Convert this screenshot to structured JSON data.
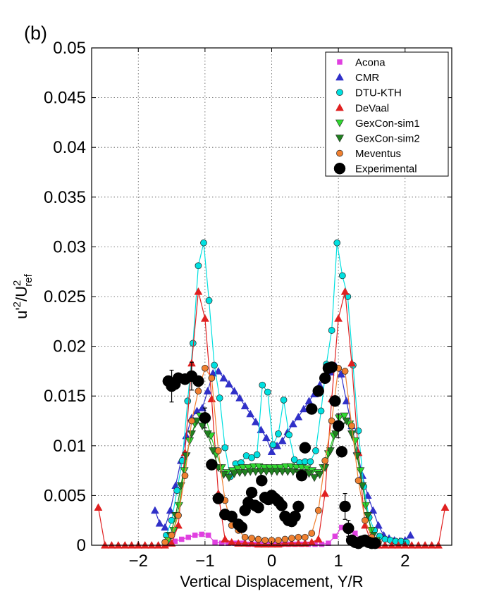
{
  "panel_label": "(b)",
  "chart_data": {
    "type": "scatter",
    "xlabel": "Vertical Displacement, Y/R",
    "ylabel": {
      "base": "u'",
      "sup1": "2",
      "sep": "/U",
      "sup2": "2",
      "sub": "ref"
    },
    "xlim": [
      -2.7,
      2.7
    ],
    "ylim": [
      0,
      0.05
    ],
    "x_ticks": [
      -2,
      -1,
      0,
      1,
      2
    ],
    "x_tick_labels": [
      "−2",
      "−1",
      "0",
      "1",
      "2"
    ],
    "y_ticks": [
      0,
      0.005,
      0.01,
      0.015,
      0.02,
      0.025,
      0.03,
      0.035,
      0.04,
      0.045,
      0.05
    ],
    "y_tick_labels": [
      "0",
      "0.005",
      "0.01",
      "0.015",
      "0.02",
      "0.025",
      "0.03",
      "0.035",
      "0.04",
      "0.045",
      "0.05"
    ],
    "grid": true,
    "legend_position": "top-right",
    "series": [
      {
        "name": "Acona",
        "marker": "square",
        "color": "#e040e0",
        "line": true,
        "x": [
          -1.55,
          -1.45,
          -1.35,
          -1.25,
          -1.15,
          -1.05,
          -0.95,
          -0.85,
          -0.75,
          -0.65,
          -0.55,
          -0.45,
          -0.35,
          -0.25,
          -0.15,
          -0.05,
          0.05,
          0.15,
          0.25,
          0.35,
          0.45,
          0.55,
          0.65,
          0.75,
          0.85,
          0.95,
          1.05,
          1.15,
          1.25,
          1.35,
          1.45,
          1.55
        ],
        "y": [
          0.0002,
          0.0004,
          0.0006,
          0.0008,
          0.001,
          0.0011,
          0.001,
          0.0003,
          0.0002,
          0.0002,
          0.0002,
          0.0002,
          0.0001,
          0.0001,
          0.0001,
          0.0001,
          0.0001,
          0.0001,
          0.0001,
          0.0001,
          0.0001,
          0.0001,
          0.0001,
          0.0001,
          0.0002,
          0.0009,
          0.0018,
          0.0018,
          0.0012,
          0.0005,
          0.0002,
          0.0001
        ]
      },
      {
        "name": "CMR",
        "marker": "triangle-up",
        "color": "#3030c8",
        "line": true,
        "x": [
          -1.75,
          -1.68,
          -1.6,
          -1.52,
          -1.44,
          -1.36,
          -1.28,
          -1.2,
          -1.12,
          -1.04,
          -0.96,
          -0.88,
          -0.8,
          -0.72,
          -0.64,
          -0.56,
          -0.48,
          -0.4,
          -0.32,
          -0.24,
          -0.16,
          -0.08,
          0,
          0.08,
          0.16,
          0.24,
          0.32,
          0.4,
          0.48,
          0.56,
          0.64,
          0.72,
          0.8,
          0.88,
          0.96,
          1.04,
          1.12,
          1.2,
          1.28,
          1.36,
          1.44,
          1.52,
          1.6,
          1.68,
          1.76,
          1.84,
          1.92,
          2,
          2.08
        ],
        "y": [
          0.0035,
          0.0022,
          0.0018,
          0.0035,
          0.006,
          0.0085,
          0.011,
          0.0128,
          0.0135,
          0.0138,
          0.0155,
          0.0173,
          0.0175,
          0.0168,
          0.0162,
          0.0155,
          0.0148,
          0.014,
          0.0132,
          0.0124,
          0.0116,
          0.0108,
          0.0094,
          0.01,
          0.0105,
          0.0114,
          0.0122,
          0.0129,
          0.0137,
          0.0145,
          0.0152,
          0.0161,
          0.0168,
          0.0174,
          0.018,
          0.0172,
          0.0145,
          0.012,
          0.0095,
          0.007,
          0.005,
          0.0035,
          0.002,
          0.001,
          0.0007,
          0.0005,
          0.0004,
          0.0005,
          0.001
        ]
      },
      {
        "name": "DTU-KTH",
        "marker": "circle",
        "color": "#00e0e0",
        "line": true,
        "x": [
          -1.58,
          -1.5,
          -1.42,
          -1.34,
          -1.26,
          -1.18,
          -1.1,
          -1.02,
          -0.94,
          -0.86,
          -0.78,
          -0.7,
          -0.62,
          -0.54,
          -0.46,
          -0.38,
          -0.3,
          -0.22,
          -0.14,
          -0.06,
          0.02,
          0.1,
          0.18,
          0.26,
          0.34,
          0.42,
          0.5,
          0.58,
          0.66,
          0.74,
          0.82,
          0.9,
          0.98,
          1.06,
          1.14,
          1.22,
          1.3,
          1.38,
          1.46,
          1.54,
          1.62,
          1.7,
          1.78,
          1.86,
          1.94,
          2.02
        ],
        "y": [
          0.001,
          0.0025,
          0.0055,
          0.0085,
          0.0145,
          0.0203,
          0.0281,
          0.0304,
          0.0246,
          0.0181,
          0.0148,
          0.0098,
          0.0069,
          0.0082,
          0.0083,
          0.009,
          0.0088,
          0.0091,
          0.0161,
          0.0154,
          0.0101,
          0.0112,
          0.0146,
          0.0111,
          0.0086,
          0.0083,
          0.0084,
          0.0084,
          0.0095,
          0.0135,
          0.0182,
          0.0216,
          0.0304,
          0.0271,
          0.025,
          0.0181,
          0.0115,
          0.0059,
          0.0028,
          0.0015,
          0.0009,
          0.0006,
          0.0005,
          0.0004,
          0.0004,
          0.0003
        ]
      },
      {
        "name": "DeVaal",
        "marker": "triangle-up",
        "color": "#e02020",
        "line": true,
        "x": [
          -2.6,
          -2.5,
          -2.4,
          -2.3,
          -2.2,
          -2.1,
          -2,
          -1.9,
          -1.8,
          -1.7,
          -1.6,
          -1.5,
          -1.4,
          -1.3,
          -1.2,
          -1.1,
          -1,
          -0.9,
          -0.8,
          -0.7,
          -0.6,
          -0.5,
          -0.4,
          -0.3,
          -0.2,
          -0.1,
          0,
          0.1,
          0.2,
          0.3,
          0.4,
          0.5,
          0.6,
          0.7,
          0.8,
          0.9,
          1,
          1.1,
          1.2,
          1.3,
          1.4,
          1.5,
          1.6,
          1.7,
          1.8,
          1.9,
          2,
          2.1,
          2.2,
          2.3,
          2.4,
          2.5,
          2.6
        ],
        "y": [
          0.0038,
          0,
          0,
          0,
          0,
          0,
          0,
          0,
          0,
          0,
          0,
          0.0002,
          0.002,
          0.0093,
          0.0183,
          0.0255,
          0.0228,
          0.0147,
          0.0052,
          0.0006,
          0.0003,
          0.0002,
          0.0002,
          0.0002,
          0.0001,
          0.0001,
          0.0001,
          0.0001,
          0.0002,
          0.0002,
          0.0002,
          0.0002,
          0.0003,
          0.0006,
          0.0052,
          0.0147,
          0.0228,
          0.0255,
          0.0183,
          0.0093,
          0.002,
          0.0002,
          0,
          0,
          0,
          0,
          0,
          0,
          0,
          0,
          0,
          0,
          0.0038
        ]
      },
      {
        "name": "GexCon-sim1",
        "marker": "triangle-down",
        "color": "#30d830",
        "line": true,
        "x": [
          -1.55,
          -1.47,
          -1.39,
          -1.31,
          -1.23,
          -1.15,
          -1.07,
          -0.99,
          -0.91,
          -0.83,
          -0.75,
          -0.67,
          -0.59,
          -0.51,
          -0.43,
          -0.35,
          -0.27,
          -0.19,
          -0.11,
          -0.03,
          0.05,
          0.13,
          0.21,
          0.29,
          0.37,
          0.45,
          0.53,
          0.61,
          0.69,
          0.77,
          0.85,
          0.93,
          1.01,
          1.09,
          1.17,
          1.25,
          1.33,
          1.41,
          1.49,
          1.57
        ],
        "y": [
          0.0005,
          0.0015,
          0.004,
          0.0075,
          0.0105,
          0.0122,
          0.013,
          0.0128,
          0.011,
          0.0092,
          0.0078,
          0.0073,
          0.0075,
          0.0077,
          0.0078,
          0.0078,
          0.0079,
          0.0079,
          0.0078,
          0.0078,
          0.0078,
          0.0078,
          0.0079,
          0.0079,
          0.0078,
          0.0078,
          0.0077,
          0.0075,
          0.0073,
          0.0078,
          0.0092,
          0.011,
          0.0128,
          0.013,
          0.0122,
          0.0105,
          0.0075,
          0.004,
          0.0015,
          0.0005
        ]
      },
      {
        "name": "GexCon-sim2",
        "marker": "triangle-down",
        "color": "#208020",
        "line": true,
        "x": [
          -1.52,
          -1.44,
          -1.36,
          -1.28,
          -1.2,
          -1.12,
          -1.04,
          -0.96,
          -0.88,
          -0.8,
          -0.72,
          -0.64,
          -0.56,
          -0.48,
          -0.4,
          -0.32,
          -0.24,
          -0.16,
          -0.08,
          0,
          0.08,
          0.16,
          0.24,
          0.32,
          0.4,
          0.48,
          0.56,
          0.64,
          0.72,
          0.8,
          0.88,
          0.96,
          1.04,
          1.12,
          1.2,
          1.28,
          1.36,
          1.44,
          1.52
        ],
        "y": [
          0.001,
          0.003,
          0.006,
          0.009,
          0.0112,
          0.0125,
          0.012,
          0.0112,
          0.0095,
          0.0078,
          0.0071,
          0.0068,
          0.0072,
          0.0073,
          0.0073,
          0.0074,
          0.0074,
          0.0074,
          0.0074,
          0.0074,
          0.0074,
          0.0074,
          0.0074,
          0.0074,
          0.0073,
          0.0073,
          0.0072,
          0.0068,
          0.0071,
          0.0078,
          0.0095,
          0.0112,
          0.012,
          0.0125,
          0.0112,
          0.009,
          0.006,
          0.003,
          0.001
        ]
      },
      {
        "name": "Meventus",
        "marker": "circle",
        "color": "#f08030",
        "line": true,
        "x": [
          -1.6,
          -1.5,
          -1.4,
          -1.3,
          -1.2,
          -1.1,
          -1,
          -0.9,
          -0.8,
          -0.7,
          -0.6,
          -0.5,
          -0.4,
          -0.3,
          -0.2,
          -0.1,
          0,
          0.1,
          0.2,
          0.3,
          0.4,
          0.5,
          0.6,
          0.7,
          0.8,
          0.9,
          1,
          1.1,
          1.2,
          1.3,
          1.4,
          1.5,
          1.6
        ],
        "y": [
          0.0003,
          0.001,
          0.003,
          0.007,
          0.0125,
          0.0155,
          0.0178,
          0.0168,
          0.0095,
          0.0045,
          0.002,
          0.0015,
          0.0008,
          0.0007,
          0.0006,
          0.0005,
          0.0005,
          0.0005,
          0.0006,
          0.0007,
          0.0008,
          0.0008,
          0.0012,
          0.0035,
          0.0085,
          0.0125,
          0.0178,
          0.0175,
          0.012,
          0.0065,
          0.0025,
          0.0008,
          0.0003
        ]
      },
      {
        "name": "Experimental",
        "marker": "circle-large",
        "color": "#000000",
        "line": false,
        "x": [
          -1.55,
          -1.5,
          -1.45,
          -1.4,
          -1.3,
          -1.2,
          -1.1,
          -1,
          -0.9,
          -0.8,
          -0.7,
          -0.6,
          -0.5,
          -0.45,
          -0.4,
          -0.35,
          -0.3,
          -0.25,
          -0.2,
          -0.15,
          -0.1,
          -0.05,
          0,
          0.05,
          0.1,
          0.15,
          0.2,
          0.25,
          0.3,
          0.35,
          0.4,
          0.45,
          0.5,
          0.6,
          0.7,
          0.8,
          0.85,
          0.9,
          0.95,
          1,
          1.05,
          1.1,
          1.15,
          1.2,
          1.25,
          1.3,
          1.35,
          1.4,
          1.45,
          1.5,
          1.55
        ],
        "y": [
          0.0165,
          0.016,
          0.0162,
          0.0168,
          0.0167,
          0.017,
          0.0165,
          0.0128,
          0.0081,
          0.0047,
          0.0031,
          0.0029,
          0.0021,
          0.0018,
          0.0035,
          0.0043,
          0.0053,
          0.004,
          0.0038,
          0.0065,
          0.0048,
          0.0046,
          0.005,
          0.0047,
          0.0044,
          0.004,
          0.0029,
          0.0025,
          0.0024,
          0.0029,
          0.0039,
          0.007,
          0.0098,
          0.0137,
          0.0155,
          0.0168,
          0.0178,
          0.0179,
          0.0145,
          0.012,
          0.0094,
          0.0039,
          0.0017,
          0.0005,
          0.0003,
          0.0002,
          0.0004,
          0.0005,
          0.0003,
          0.0002,
          0.0002
        ],
        "error_x": [
          -1.5,
          -1.2,
          -1,
          1,
          1.1,
          1.15
        ],
        "error_y": [
          0.0016,
          0.0014,
          0.001,
          0.0012,
          0.0013,
          0.0008
        ]
      }
    ]
  }
}
